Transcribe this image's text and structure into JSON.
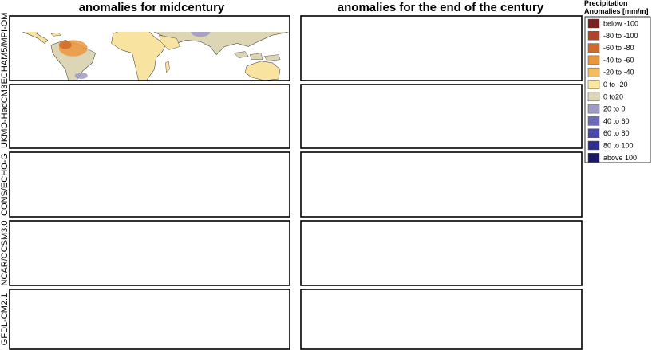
{
  "column_titles": [
    "anomalies for midcentury",
    "anomalies for the end of the century"
  ],
  "row_labels": [
    "ECHAM5/MPI-OM",
    "UKMO-HadCM3",
    "CONS/ECHO-G",
    "NCAR/CCSM3.0",
    "GFDL-CM2.1"
  ],
  "legend": {
    "title": [
      "Precipitation",
      "Anomalies [mm/m]"
    ],
    "items": [
      {
        "label": "below -100",
        "color": "#7a1f1f"
      },
      {
        "label": "-80 to -100",
        "color": "#b0452c"
      },
      {
        "label": "-60 to -80",
        "color": "#d06a2c"
      },
      {
        "label": "-40 to -60",
        "color": "#ec963c"
      },
      {
        "label": "-20 to -40",
        "color": "#f5bd5c"
      },
      {
        "label": "0 to -20",
        "color": "#fde79c"
      },
      {
        "label": "0 to20",
        "color": "#ddd6b6"
      },
      {
        "label": "20 to 0",
        "color": "#9f99c6"
      },
      {
        "label": "40 to 60",
        "color": "#6d6abb"
      },
      {
        "label": "60 to 80",
        "color": "#4a48aa"
      },
      {
        "label": "80 to 100",
        "color": "#2f2e8c"
      },
      {
        "label": "above 100",
        "color": "#1b1a62"
      }
    ]
  }
}
